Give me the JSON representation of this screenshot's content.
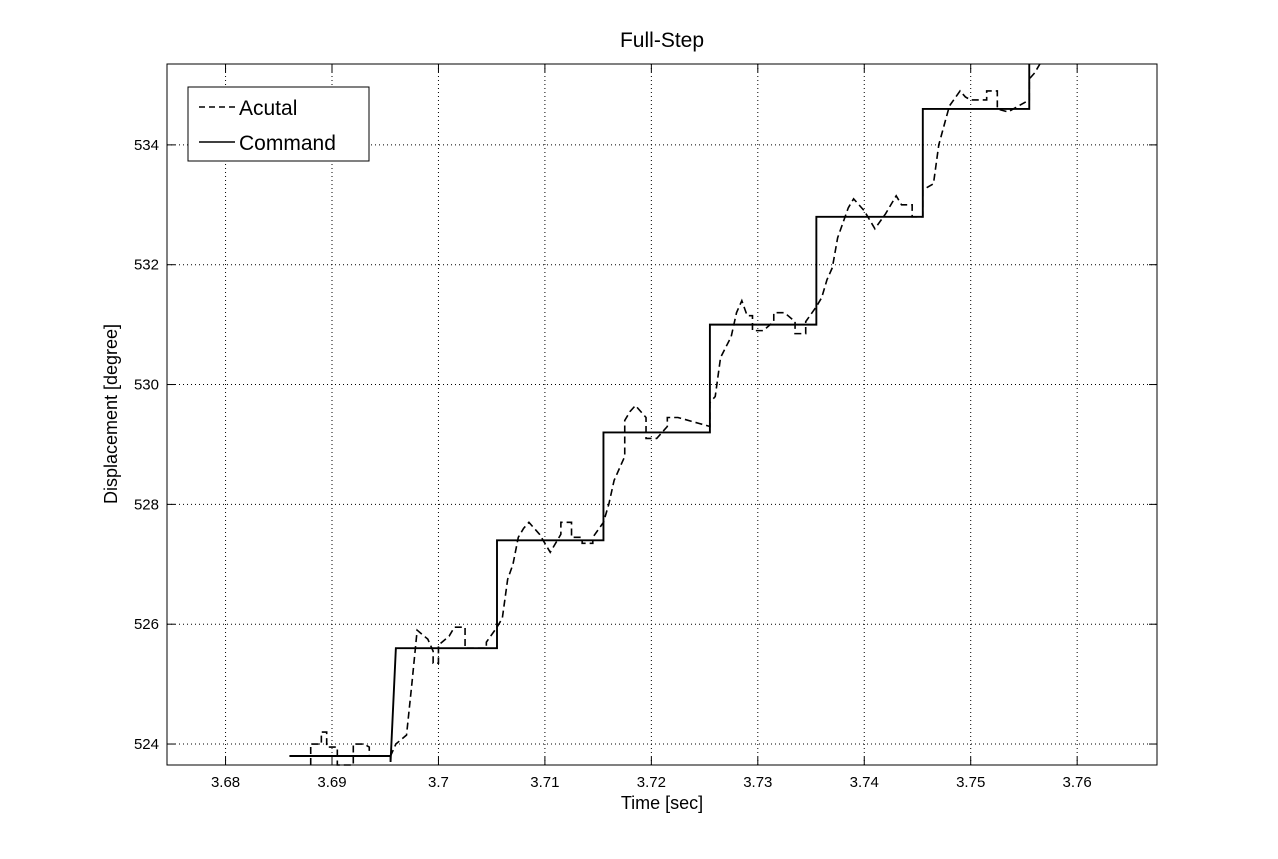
{
  "chart_data": {
    "type": "line",
    "title": "Full-Step",
    "xlabel": "Time [sec]",
    "ylabel": "Displacement [degree]",
    "xlim": [
      3.6745,
      3.7675
    ],
    "ylim": [
      523.65,
      535.35
    ],
    "grid": true,
    "legend_position": "top-left",
    "x_ticks": [
      3.68,
      3.69,
      3.7,
      3.71,
      3.72,
      3.73,
      3.74,
      3.75,
      3.76
    ],
    "x_tick_labels": [
      "3.68",
      "3.69",
      "3.7",
      "3.71",
      "3.72",
      "3.73",
      "3.74",
      "3.75",
      "3.76"
    ],
    "y_ticks": [
      524,
      526,
      528,
      530,
      532,
      534
    ],
    "y_tick_labels": [
      "524",
      "526",
      "528",
      "530",
      "532",
      "534"
    ],
    "series": [
      {
        "name": "Acutal",
        "style": "dashed",
        "color": "#000000",
        "points": [
          [
            3.688,
            523.65
          ],
          [
            3.688,
            524.0
          ],
          [
            3.689,
            524.0
          ],
          [
            3.689,
            524.2
          ],
          [
            3.6895,
            524.2
          ],
          [
            3.6895,
            523.95
          ],
          [
            3.6905,
            523.95
          ],
          [
            3.6905,
            523.65
          ],
          [
            3.692,
            523.65
          ],
          [
            3.692,
            524.0
          ],
          [
            3.693,
            524.0
          ],
          [
            3.6935,
            523.95
          ],
          [
            3.6935,
            523.8
          ],
          [
            3.6955,
            523.8
          ],
          [
            3.696,
            524.0
          ],
          [
            3.697,
            524.15
          ],
          [
            3.6975,
            525.0
          ],
          [
            3.698,
            525.9
          ],
          [
            3.699,
            525.75
          ],
          [
            3.6995,
            525.55
          ],
          [
            3.6995,
            525.35
          ],
          [
            3.7,
            525.35
          ],
          [
            3.7,
            525.65
          ],
          [
            3.701,
            525.8
          ],
          [
            3.7015,
            525.95
          ],
          [
            3.7025,
            525.95
          ],
          [
            3.7025,
            525.6
          ],
          [
            3.7045,
            525.6
          ],
          [
            3.7045,
            525.7
          ],
          [
            3.7055,
            525.95
          ],
          [
            3.706,
            526.1
          ],
          [
            3.7065,
            526.75
          ],
          [
            3.707,
            527.0
          ],
          [
            3.7075,
            527.45
          ],
          [
            3.708,
            527.6
          ],
          [
            3.7085,
            527.7
          ],
          [
            3.7095,
            527.5
          ],
          [
            3.7105,
            527.2
          ],
          [
            3.7115,
            527.5
          ],
          [
            3.7115,
            527.7
          ],
          [
            3.7125,
            527.7
          ],
          [
            3.7125,
            527.45
          ],
          [
            3.7135,
            527.45
          ],
          [
            3.7135,
            527.35
          ],
          [
            3.7145,
            527.35
          ],
          [
            3.7145,
            527.45
          ],
          [
            3.7155,
            527.7
          ],
          [
            3.716,
            528.0
          ],
          [
            3.7165,
            528.4
          ],
          [
            3.7175,
            528.8
          ],
          [
            3.7175,
            529.4
          ],
          [
            3.718,
            529.55
          ],
          [
            3.7185,
            529.65
          ],
          [
            3.7195,
            529.45
          ],
          [
            3.7195,
            529.1
          ],
          [
            3.7205,
            529.1
          ],
          [
            3.7215,
            529.3
          ],
          [
            3.7215,
            529.45
          ],
          [
            3.7225,
            529.45
          ],
          [
            3.7245,
            529.35
          ],
          [
            3.7255,
            529.3
          ],
          [
            3.7255,
            529.7
          ],
          [
            3.726,
            529.8
          ],
          [
            3.7265,
            530.45
          ],
          [
            3.7275,
            530.8
          ],
          [
            3.728,
            531.2
          ],
          [
            3.7285,
            531.4
          ],
          [
            3.729,
            531.15
          ],
          [
            3.7295,
            531.15
          ],
          [
            3.7295,
            530.9
          ],
          [
            3.7305,
            530.9
          ],
          [
            3.7315,
            531.05
          ],
          [
            3.7315,
            531.2
          ],
          [
            3.7325,
            531.2
          ],
          [
            3.7335,
            531.05
          ],
          [
            3.7335,
            530.85
          ],
          [
            3.7345,
            530.85
          ],
          [
            3.7345,
            531.05
          ],
          [
            3.7355,
            531.3
          ],
          [
            3.736,
            531.45
          ],
          [
            3.7365,
            531.75
          ],
          [
            3.737,
            531.95
          ],
          [
            3.7375,
            532.45
          ],
          [
            3.7385,
            532.95
          ],
          [
            3.739,
            533.1
          ],
          [
            3.74,
            532.9
          ],
          [
            3.7405,
            532.75
          ],
          [
            3.741,
            532.6
          ],
          [
            3.742,
            532.85
          ],
          [
            3.743,
            533.15
          ],
          [
            3.7435,
            533.0
          ],
          [
            3.7445,
            533.0
          ],
          [
            3.7445,
            532.8
          ],
          [
            3.7455,
            532.8
          ],
          [
            3.7455,
            533.25
          ],
          [
            3.7465,
            533.35
          ],
          [
            3.747,
            534.0
          ],
          [
            3.748,
            534.65
          ],
          [
            3.749,
            534.9
          ],
          [
            3.7495,
            534.8
          ],
          [
            3.75,
            534.75
          ],
          [
            3.7505,
            534.75
          ],
          [
            3.7515,
            534.75
          ],
          [
            3.7515,
            534.9
          ],
          [
            3.7525,
            534.9
          ],
          [
            3.7525,
            534.6
          ],
          [
            3.7535,
            534.55
          ],
          [
            3.7545,
            534.65
          ],
          [
            3.7555,
            534.75
          ],
          [
            3.7555,
            535.1
          ],
          [
            3.756,
            535.2
          ],
          [
            3.7565,
            535.35
          ]
        ]
      },
      {
        "name": "Command",
        "style": "solid",
        "color": "#000000",
        "points": [
          [
            3.686,
            523.8
          ],
          [
            3.6955,
            523.8
          ],
          [
            3.6955,
            523.7
          ],
          [
            3.696,
            525.6
          ],
          [
            3.7055,
            525.6
          ],
          [
            3.7055,
            527.4
          ],
          [
            3.7155,
            527.4
          ],
          [
            3.7155,
            529.2
          ],
          [
            3.7255,
            529.2
          ],
          [
            3.7255,
            531.0
          ],
          [
            3.7355,
            531.0
          ],
          [
            3.7355,
            532.8
          ],
          [
            3.7455,
            532.8
          ],
          [
            3.7455,
            534.6
          ],
          [
            3.7555,
            534.6
          ],
          [
            3.7555,
            535.35
          ]
        ]
      }
    ]
  }
}
